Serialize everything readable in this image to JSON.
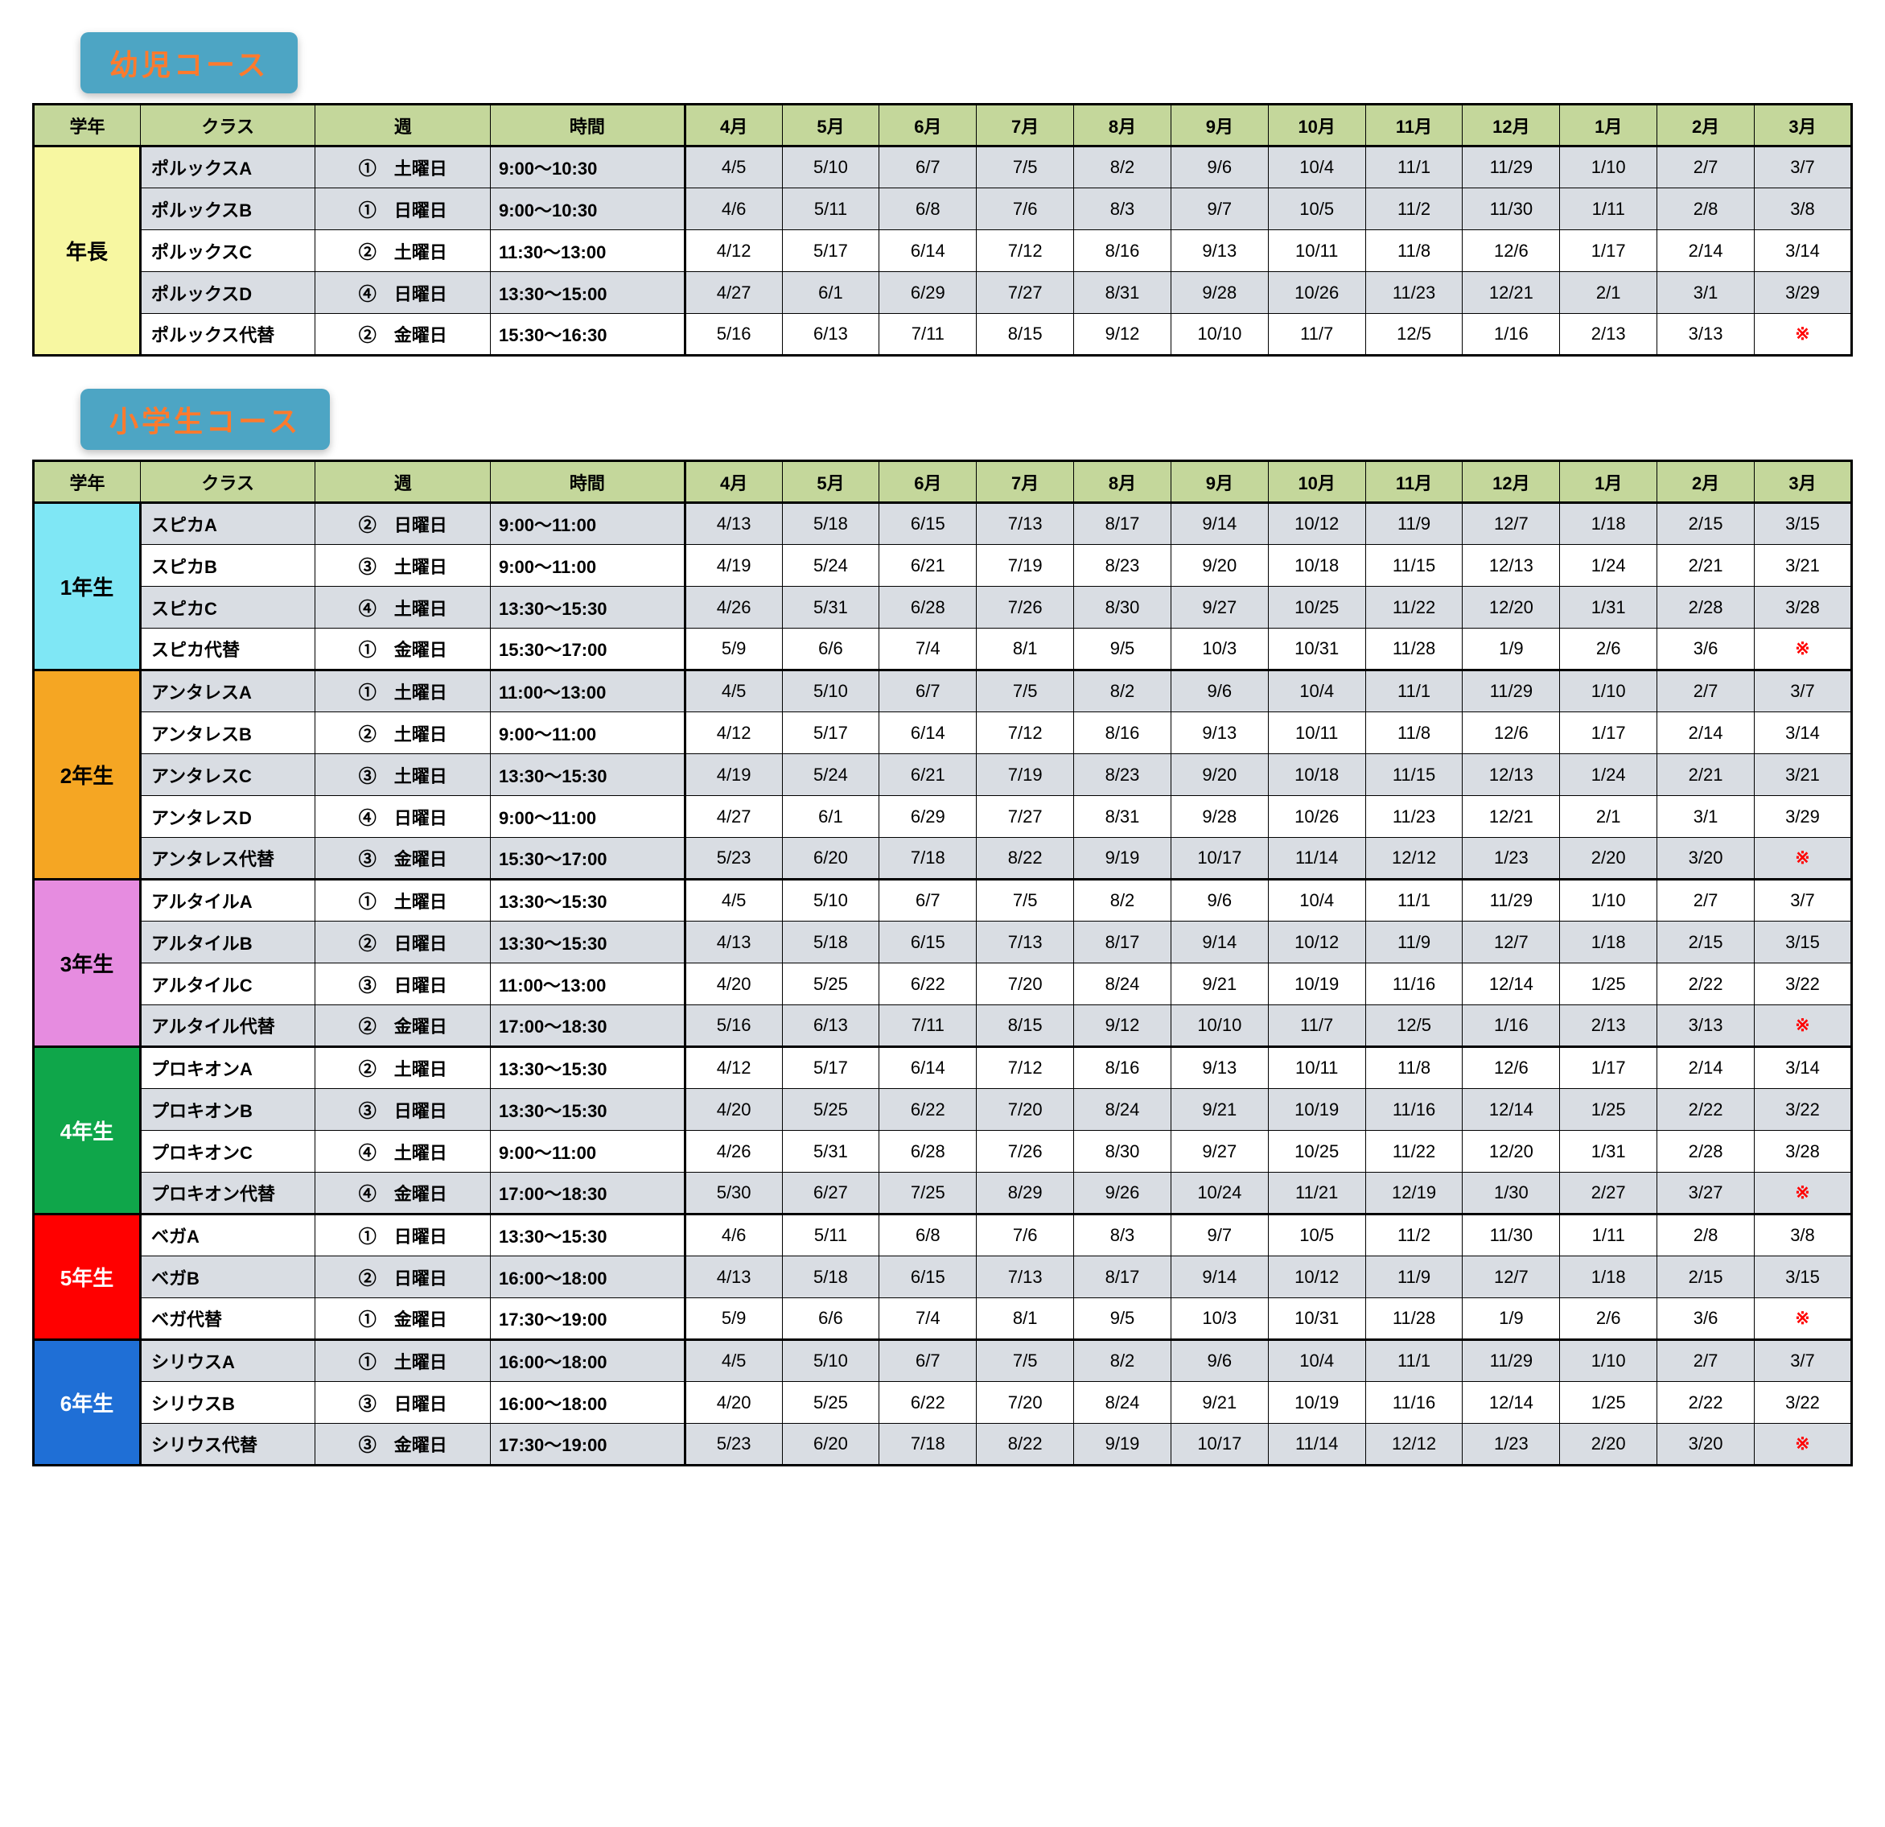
{
  "colors": {
    "title_bg": "#4da5c4",
    "title_text": "#ff7a2d",
    "header_green": "#c4d79b",
    "grade_yellow": "#f7f7a1",
    "grade_cyan": "#7fe7f5",
    "grade_orange": "#f5a623",
    "grade_pink": "#e68ce0",
    "grade_green": "#0fa64a",
    "grade_red": "#ff0000",
    "grade_blue": "#1f6fd6",
    "row_shade": "#d9dde3",
    "row_plain": "#ffffff",
    "text_white": "#ffffff",
    "text_black": "#000000"
  },
  "section1": {
    "title": "幼児コース",
    "headers": [
      "学年",
      "クラス",
      "週",
      "時間",
      "4月",
      "5月",
      "6月",
      "7月",
      "8月",
      "9月",
      "10月",
      "11月",
      "12月",
      "1月",
      "2月",
      "3月"
    ],
    "groups": [
      {
        "grade": "年長",
        "grade_bg": "grade_yellow",
        "grade_fg": "text_black",
        "rows": [
          {
            "shade": true,
            "class": "ポルックスA",
            "week": "①　土曜日",
            "time": "9:00～10:30",
            "dates": [
              "4/5",
              "5/10",
              "6/7",
              "7/5",
              "8/2",
              "9/6",
              "10/4",
              "11/1",
              "11/29",
              "1/10",
              "2/7",
              "3/7"
            ]
          },
          {
            "shade": true,
            "class": "ポルックスB",
            "week": "①　日曜日",
            "time": "9:00～10:30",
            "dates": [
              "4/6",
              "5/11",
              "6/8",
              "7/6",
              "8/3",
              "9/7",
              "10/5",
              "11/2",
              "11/30",
              "1/11",
              "2/8",
              "3/8"
            ]
          },
          {
            "shade": false,
            "class": "ポルックスC",
            "week": "②　土曜日",
            "time": "11:30～13:00",
            "dates": [
              "4/12",
              "5/17",
              "6/14",
              "7/12",
              "8/16",
              "9/13",
              "10/11",
              "11/8",
              "12/6",
              "1/17",
              "2/14",
              "3/14"
            ]
          },
          {
            "shade": true,
            "class": "ポルックスD",
            "week": "④　日曜日",
            "time": "13:30～15:00",
            "dates": [
              "4/27",
              "6/1",
              "6/29",
              "7/27",
              "8/31",
              "9/28",
              "10/26",
              "11/23",
              "12/21",
              "2/1",
              "3/1",
              "3/29"
            ]
          },
          {
            "shade": false,
            "class": "ポルックス代替",
            "week": "②　金曜日",
            "time": "15:30～16:30",
            "dates": [
              "5/16",
              "6/13",
              "7/11",
              "8/15",
              "9/12",
              "10/10",
              "11/7",
              "12/5",
              "1/16",
              "2/13",
              "3/13",
              "※"
            ]
          }
        ]
      }
    ]
  },
  "section2": {
    "title": "小学生コース",
    "headers": [
      "学年",
      "クラス",
      "週",
      "時間",
      "4月",
      "5月",
      "6月",
      "7月",
      "8月",
      "9月",
      "10月",
      "11月",
      "12月",
      "1月",
      "2月",
      "3月"
    ],
    "groups": [
      {
        "grade": "1年生",
        "grade_bg": "grade_cyan",
        "grade_fg": "text_black",
        "rows": [
          {
            "shade": true,
            "class": "スピカA",
            "week": "②　日曜日",
            "time": "9:00～11:00",
            "dates": [
              "4/13",
              "5/18",
              "6/15",
              "7/13",
              "8/17",
              "9/14",
              "10/12",
              "11/9",
              "12/7",
              "1/18",
              "2/15",
              "3/15"
            ]
          },
          {
            "shade": false,
            "class": "スピカB",
            "week": "③　土曜日",
            "time": "9:00～11:00",
            "dates": [
              "4/19",
              "5/24",
              "6/21",
              "7/19",
              "8/23",
              "9/20",
              "10/18",
              "11/15",
              "12/13",
              "1/24",
              "2/21",
              "3/21"
            ]
          },
          {
            "shade": true,
            "class": "スピカC",
            "week": "④　土曜日",
            "time": "13:30～15:30",
            "dates": [
              "4/26",
              "5/31",
              "6/28",
              "7/26",
              "8/30",
              "9/27",
              "10/25",
              "11/22",
              "12/20",
              "1/31",
              "2/28",
              "3/28"
            ]
          },
          {
            "shade": false,
            "class": "スピカ代替",
            "week": "①　金曜日",
            "time": "15:30～17:00",
            "dates": [
              "5/9",
              "6/6",
              "7/4",
              "8/1",
              "9/5",
              "10/3",
              "10/31",
              "11/28",
              "1/9",
              "2/6",
              "3/6",
              "※"
            ]
          }
        ]
      },
      {
        "grade": "2年生",
        "grade_bg": "grade_orange",
        "grade_fg": "text_black",
        "rows": [
          {
            "shade": true,
            "class": "アンタレスA",
            "week": "①　土曜日",
            "time": "11:00～13:00",
            "dates": [
              "4/5",
              "5/10",
              "6/7",
              "7/5",
              "8/2",
              "9/6",
              "10/4",
              "11/1",
              "11/29",
              "1/10",
              "2/7",
              "3/7"
            ]
          },
          {
            "shade": false,
            "class": "アンタレスB",
            "week": "②　土曜日",
            "time": "9:00～11:00",
            "dates": [
              "4/12",
              "5/17",
              "6/14",
              "7/12",
              "8/16",
              "9/13",
              "10/11",
              "11/8",
              "12/6",
              "1/17",
              "2/14",
              "3/14"
            ]
          },
          {
            "shade": true,
            "class": "アンタレスC",
            "week": "③　土曜日",
            "time": "13:30～15:30",
            "dates": [
              "4/19",
              "5/24",
              "6/21",
              "7/19",
              "8/23",
              "9/20",
              "10/18",
              "11/15",
              "12/13",
              "1/24",
              "2/21",
              "3/21"
            ]
          },
          {
            "shade": false,
            "class": "アンタレスD",
            "week": "④　日曜日",
            "time": "9:00～11:00",
            "dates": [
              "4/27",
              "6/1",
              "6/29",
              "7/27",
              "8/31",
              "9/28",
              "10/26",
              "11/23",
              "12/21",
              "2/1",
              "3/1",
              "3/29"
            ]
          },
          {
            "shade": true,
            "class": "アンタレス代替",
            "week": "③　金曜日",
            "time": "15:30～17:00",
            "dates": [
              "5/23",
              "6/20",
              "7/18",
              "8/22",
              "9/19",
              "10/17",
              "11/14",
              "12/12",
              "1/23",
              "2/20",
              "3/20",
              "※"
            ]
          }
        ]
      },
      {
        "grade": "3年生",
        "grade_bg": "grade_pink",
        "grade_fg": "text_black",
        "rows": [
          {
            "shade": false,
            "class": "アルタイルA",
            "week": "①　土曜日",
            "time": "13:30～15:30",
            "dates": [
              "4/5",
              "5/10",
              "6/7",
              "7/5",
              "8/2",
              "9/6",
              "10/4",
              "11/1",
              "11/29",
              "1/10",
              "2/7",
              "3/7"
            ]
          },
          {
            "shade": true,
            "class": "アルタイルB",
            "week": "②　日曜日",
            "time": "13:30～15:30",
            "dates": [
              "4/13",
              "5/18",
              "6/15",
              "7/13",
              "8/17",
              "9/14",
              "10/12",
              "11/9",
              "12/7",
              "1/18",
              "2/15",
              "3/15"
            ]
          },
          {
            "shade": false,
            "class": "アルタイルC",
            "week": "③　日曜日",
            "time": "11:00～13:00",
            "dates": [
              "4/20",
              "5/25",
              "6/22",
              "7/20",
              "8/24",
              "9/21",
              "10/19",
              "11/16",
              "12/14",
              "1/25",
              "2/22",
              "3/22"
            ]
          },
          {
            "shade": true,
            "class": "アルタイル代替",
            "week": "②　金曜日",
            "time": "17:00～18:30",
            "dates": [
              "5/16",
              "6/13",
              "7/11",
              "8/15",
              "9/12",
              "10/10",
              "11/7",
              "12/5",
              "1/16",
              "2/13",
              "3/13",
              "※"
            ]
          }
        ]
      },
      {
        "grade": "4年生",
        "grade_bg": "grade_green",
        "grade_fg": "text_white",
        "rows": [
          {
            "shade": false,
            "class": "プロキオンA",
            "week": "②　土曜日",
            "time": "13:30～15:30",
            "dates": [
              "4/12",
              "5/17",
              "6/14",
              "7/12",
              "8/16",
              "9/13",
              "10/11",
              "11/8",
              "12/6",
              "1/17",
              "2/14",
              "3/14"
            ]
          },
          {
            "shade": true,
            "class": "プロキオンB",
            "week": "③　日曜日",
            "time": "13:30～15:30",
            "dates": [
              "4/20",
              "5/25",
              "6/22",
              "7/20",
              "8/24",
              "9/21",
              "10/19",
              "11/16",
              "12/14",
              "1/25",
              "2/22",
              "3/22"
            ]
          },
          {
            "shade": false,
            "class": "プロキオンC",
            "week": "④　土曜日",
            "time": "9:00～11:00",
            "dates": [
              "4/26",
              "5/31",
              "6/28",
              "7/26",
              "8/30",
              "9/27",
              "10/25",
              "11/22",
              "12/20",
              "1/31",
              "2/28",
              "3/28"
            ]
          },
          {
            "shade": true,
            "class": "プロキオン代替",
            "week": "④　金曜日",
            "time": "17:00～18:30",
            "dates": [
              "5/30",
              "6/27",
              "7/25",
              "8/29",
              "9/26",
              "10/24",
              "11/21",
              "12/19",
              "1/30",
              "2/27",
              "3/27",
              "※"
            ]
          }
        ]
      },
      {
        "grade": "5年生",
        "grade_bg": "grade_red",
        "grade_fg": "text_white",
        "rows": [
          {
            "shade": false,
            "class": "ベガA",
            "week": "①　日曜日",
            "time": "13:30～15:30",
            "dates": [
              "4/6",
              "5/11",
              "6/8",
              "7/6",
              "8/3",
              "9/7",
              "10/5",
              "11/2",
              "11/30",
              "1/11",
              "2/8",
              "3/8"
            ]
          },
          {
            "shade": true,
            "class": "ベガB",
            "week": "②　日曜日",
            "time": "16:00～18:00",
            "dates": [
              "4/13",
              "5/18",
              "6/15",
              "7/13",
              "8/17",
              "9/14",
              "10/12",
              "11/9",
              "12/7",
              "1/18",
              "2/15",
              "3/15"
            ]
          },
          {
            "shade": false,
            "class": "ベガ代替",
            "week": "①　金曜日",
            "time": "17:30～19:00",
            "dates": [
              "5/9",
              "6/6",
              "7/4",
              "8/1",
              "9/5",
              "10/3",
              "10/31",
              "11/28",
              "1/9",
              "2/6",
              "3/6",
              "※"
            ]
          }
        ]
      },
      {
        "grade": "6年生",
        "grade_bg": "grade_blue",
        "grade_fg": "text_white",
        "rows": [
          {
            "shade": true,
            "class": "シリウスA",
            "week": "①　土曜日",
            "time": "16:00～18:00",
            "dates": [
              "4/5",
              "5/10",
              "6/7",
              "7/5",
              "8/2",
              "9/6",
              "10/4",
              "11/1",
              "11/29",
              "1/10",
              "2/7",
              "3/7"
            ]
          },
          {
            "shade": false,
            "class": "シリウスB",
            "week": "③　日曜日",
            "time": "16:00～18:00",
            "dates": [
              "4/20",
              "5/25",
              "6/22",
              "7/20",
              "8/24",
              "9/21",
              "10/19",
              "11/16",
              "12/14",
              "1/25",
              "2/22",
              "3/22"
            ]
          },
          {
            "shade": true,
            "class": "シリウス代替",
            "week": "③　金曜日",
            "time": "17:30～19:00",
            "dates": [
              "5/23",
              "6/20",
              "7/18",
              "8/22",
              "9/19",
              "10/17",
              "11/14",
              "12/12",
              "1/23",
              "2/20",
              "3/20",
              "※"
            ]
          }
        ]
      }
    ]
  }
}
